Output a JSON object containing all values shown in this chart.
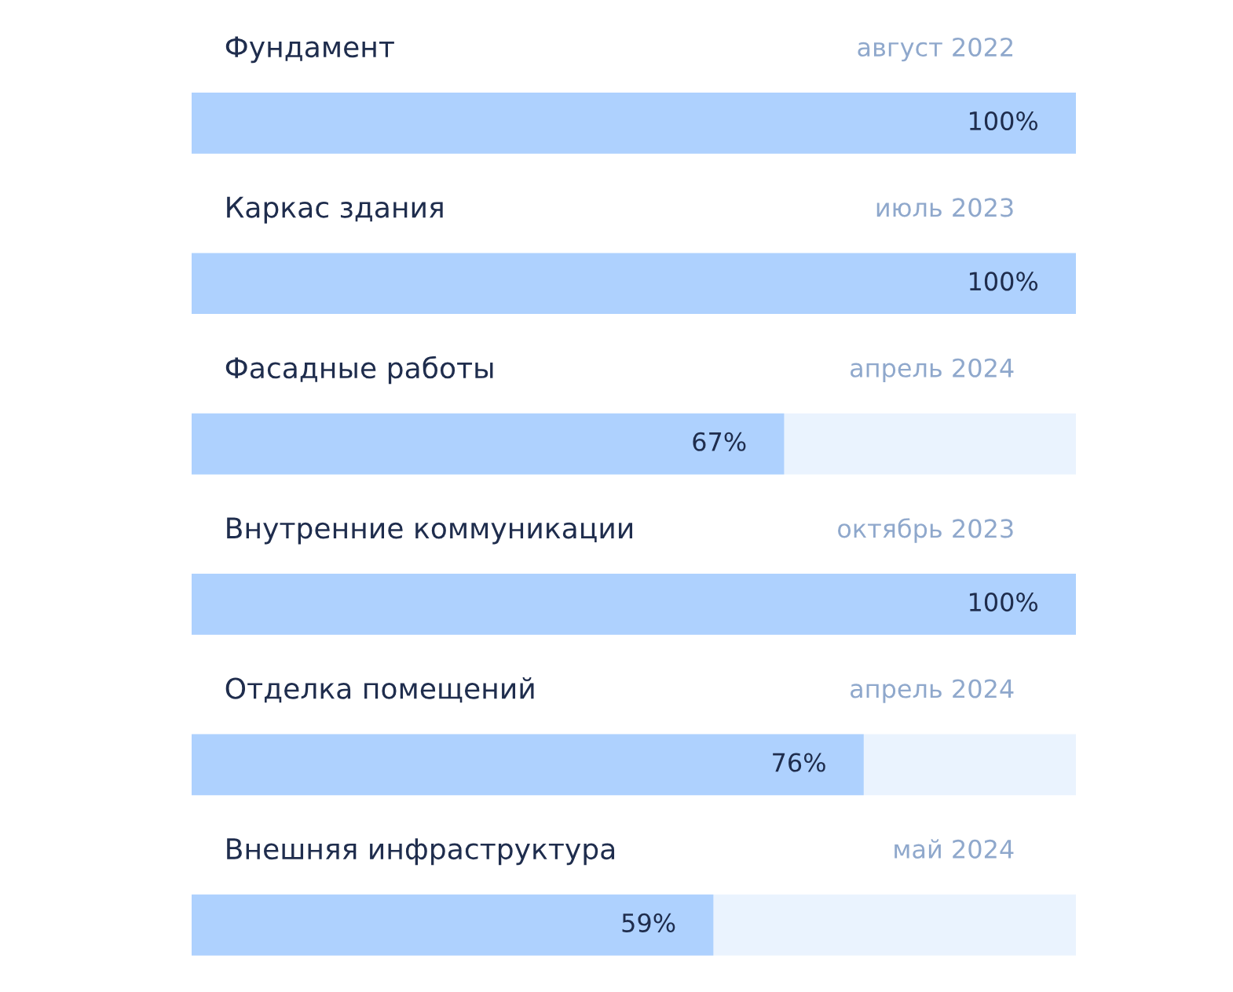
{
  "chart_data": {
    "type": "bar",
    "orientation": "horizontal",
    "categories": [
      "Фундамент",
      "Каркас здания",
      "Фасадные работы",
      "Внутренние коммуникации",
      "Отделка помещений",
      "Внешняя инфраструктура"
    ],
    "values": [
      100,
      100,
      67,
      100,
      76,
      59
    ],
    "value_labels": [
      "100%",
      "100%",
      "67%",
      "100%",
      "76%",
      "59%"
    ],
    "color": "#aed1fe",
    "xlim": [
      0,
      100
    ],
    "tick_labels": false,
    "annotations": [
      "август 2022",
      "июль 2023",
      "апрель 2024",
      "октябрь 2023",
      "апрель 2024",
      "май 2024"
    ]
  }
}
